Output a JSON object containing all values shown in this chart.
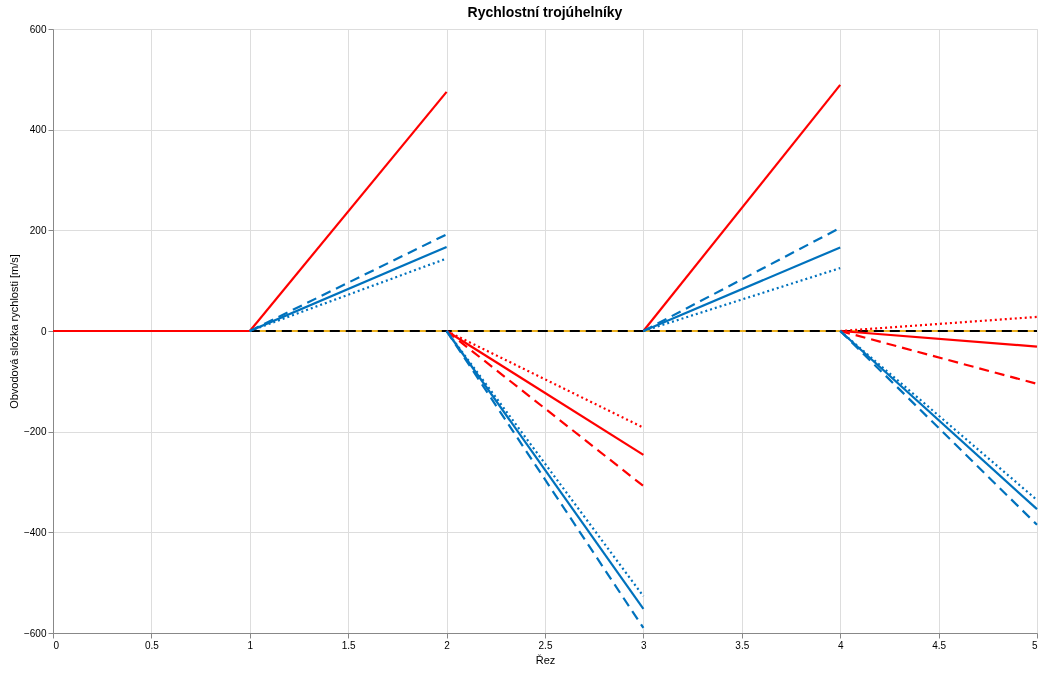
{
  "chart_data": {
    "type": "line",
    "title": "Rychlostní trojúhelníky",
    "xlabel": "Řez",
    "ylabel": "Obvodová složka rychlosti [m/s]",
    "xlim": [
      0,
      5
    ],
    "xticks": [
      0,
      0.5,
      1,
      1.5,
      2,
      2.5,
      3,
      3.5,
      4,
      4.5,
      5
    ],
    "ylim": [
      -600,
      600
    ],
    "yticks": [
      -600,
      -400,
      -200,
      0,
      200,
      400,
      600
    ],
    "grid": true,
    "series": [
      {
        "color": "#ff0000",
        "line_style": "solid",
        "x": [
          0,
          1
        ],
        "values": [
          0,
          0
        ]
      },
      {
        "color": "#edb120",
        "line_style": "solid",
        "x": [
          1,
          5
        ],
        "values": [
          0,
          0
        ]
      },
      {
        "color": "#000000",
        "line_style": "dashed",
        "x": [
          1,
          5
        ],
        "values": [
          0,
          0
        ]
      },
      {
        "color": "#ff0000",
        "line_style": "solid",
        "x": [
          1,
          2
        ],
        "values": [
          0,
          475
        ]
      },
      {
        "color": "#0072bd",
        "line_style": "dashed",
        "x": [
          1,
          2
        ],
        "values": [
          0,
          192
        ]
      },
      {
        "color": "#0072bd",
        "line_style": "solid",
        "x": [
          1,
          2
        ],
        "values": [
          0,
          167
        ]
      },
      {
        "color": "#0072bd",
        "line_style": "dotted",
        "x": [
          1,
          2
        ],
        "values": [
          0,
          144
        ]
      },
      {
        "color": "#ff0000",
        "line_style": "dotted",
        "x": [
          2,
          3
        ],
        "values": [
          0,
          -192
        ]
      },
      {
        "color": "#ff0000",
        "line_style": "solid",
        "x": [
          2,
          3
        ],
        "values": [
          0,
          -246
        ]
      },
      {
        "color": "#ff0000",
        "line_style": "dashed",
        "x": [
          2,
          3
        ],
        "values": [
          0,
          -308
        ]
      },
      {
        "color": "#0072bd",
        "line_style": "dotted",
        "x": [
          2,
          3
        ],
        "values": [
          0,
          -527
        ]
      },
      {
        "color": "#0072bd",
        "line_style": "solid",
        "x": [
          2,
          3
        ],
        "values": [
          0,
          -552
        ]
      },
      {
        "color": "#0072bd",
        "line_style": "dashed",
        "x": [
          2,
          3
        ],
        "values": [
          0,
          -590
        ]
      },
      {
        "color": "#ff0000",
        "line_style": "solid",
        "x": [
          3,
          4
        ],
        "values": [
          0,
          489
        ]
      },
      {
        "color": "#0072bd",
        "line_style": "dashed",
        "x": [
          3,
          4
        ],
        "values": [
          0,
          205
        ]
      },
      {
        "color": "#0072bd",
        "line_style": "solid",
        "x": [
          3,
          4
        ],
        "values": [
          0,
          166
        ]
      },
      {
        "color": "#0072bd",
        "line_style": "dotted",
        "x": [
          3,
          4
        ],
        "values": [
          0,
          125
        ]
      },
      {
        "color": "#ff0000",
        "line_style": "dotted",
        "x": [
          4,
          5
        ],
        "values": [
          0,
          28
        ]
      },
      {
        "color": "#ff0000",
        "line_style": "solid",
        "x": [
          4,
          5
        ],
        "values": [
          0,
          -31
        ]
      },
      {
        "color": "#ff0000",
        "line_style": "dashed",
        "x": [
          4,
          5
        ],
        "values": [
          0,
          -105
        ]
      },
      {
        "color": "#0072bd",
        "line_style": "dotted",
        "x": [
          4,
          5
        ],
        "values": [
          0,
          -336
        ]
      },
      {
        "color": "#0072bd",
        "line_style": "solid",
        "x": [
          4,
          5
        ],
        "values": [
          0,
          -354
        ]
      },
      {
        "color": "#0072bd",
        "line_style": "dashed",
        "x": [
          4,
          5
        ],
        "values": [
          0,
          -385
        ]
      }
    ]
  }
}
